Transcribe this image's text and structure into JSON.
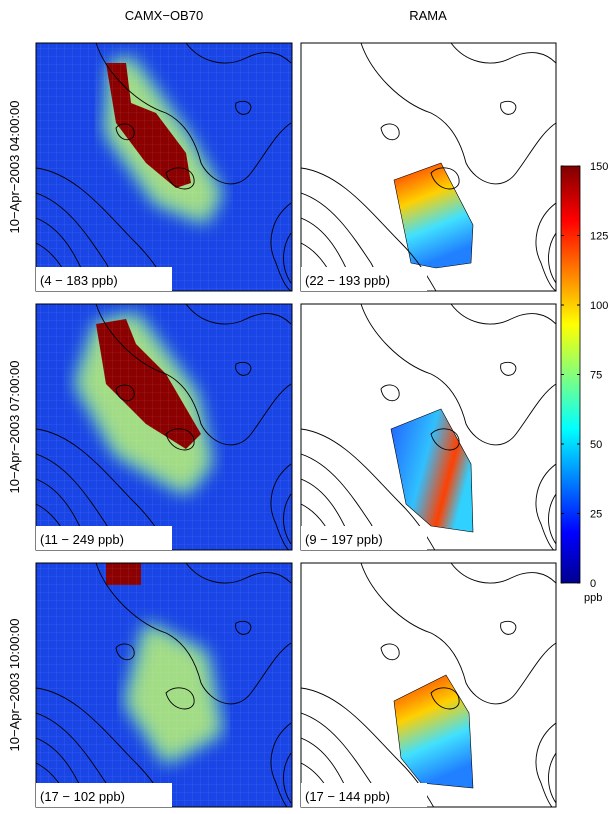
{
  "columns": [
    "CAMX−OB70",
    "RAMA"
  ],
  "rows": [
    {
      "label": "10−Apr−2003 04:00:00",
      "ranges": [
        "(4 − 183 ppb)",
        "(22 − 193 ppb)"
      ]
    },
    {
      "label": "10−Apr−2003 07:00:00",
      "ranges": [
        "(11 − 249 ppb)",
        "(9 − 197 ppb)"
      ]
    },
    {
      "label": "10−Apr−2003 10:00:00",
      "ranges": [
        "(17 − 102 ppb)",
        "(17 − 144 ppb)"
      ]
    }
  ],
  "colorbar": {
    "lim": [
      0,
      150
    ],
    "ticks": [
      0,
      25,
      50,
      75,
      100,
      125,
      150
    ],
    "unit": "ppb"
  }
}
